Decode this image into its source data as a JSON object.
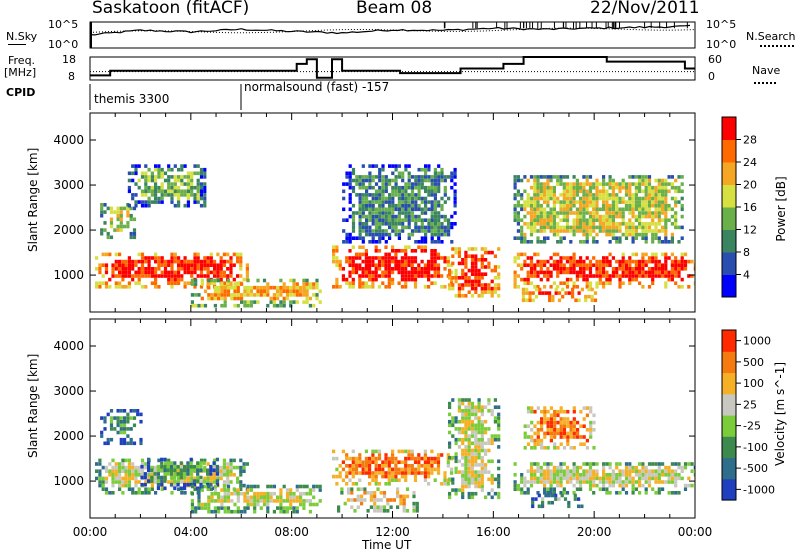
{
  "header": {
    "station": "Saskatoon (fitACF)",
    "beam": "Beam 08",
    "date": "22/Nov/2011"
  },
  "left_labels": {
    "nsky": "N.Sky",
    "freq": "Freq.",
    "freq_unit": "[MHz]",
    "cpid": "CPID"
  },
  "right_labels": {
    "nsearch": "N.Search",
    "nave": "Nave"
  },
  "cpid_names": [
    "themis 3300",
    "normalsound (fast) -157"
  ],
  "chart_data": [
    {
      "type": "line",
      "name": "noise",
      "ytick_labels_left": [
        "10^5",
        "10^0"
      ],
      "ytick_labels_right": [
        "10^5",
        "10^0"
      ],
      "series": [
        {
          "name": "N.Sky",
          "style": "solid",
          "x": [
            0,
            2,
            4,
            6,
            8,
            10,
            12,
            14,
            16,
            18,
            20,
            22,
            24
          ],
          "y_log10": [
            2.5,
            3.4,
            3.1,
            3.6,
            3.2,
            2.9,
            3.5,
            3.4,
            3.8,
            3.6,
            3.8,
            4.0,
            4.2
          ]
        },
        {
          "name": "N.Search",
          "style": "dotted"
        }
      ]
    },
    {
      "type": "line",
      "name": "frequency-nave",
      "ytick_labels_left": [
        "18",
        "8"
      ],
      "ytick_labels_right": [
        "60",
        "0"
      ],
      "series": [
        {
          "name": "Freq.",
          "style": "solid",
          "units": "MHz",
          "steps": [
            [
              0,
              10
            ],
            [
              0.8,
              12
            ],
            [
              8.2,
              15
            ],
            [
              8.6,
              17
            ],
            [
              9.0,
              9
            ],
            [
              9.6,
              17
            ],
            [
              10,
              12
            ],
            [
              12.3,
              11
            ],
            [
              14.7,
              13
            ],
            [
              16.4,
              15
            ],
            [
              17.2,
              18
            ],
            [
              20.5,
              16
            ],
            [
              23.6,
              13
            ],
            [
              24,
              13
            ]
          ]
        },
        {
          "name": "Nave",
          "style": "dotted",
          "value": 22
        }
      ]
    },
    {
      "type": "heatmap",
      "name": "power",
      "ylabel": "Slant Range [km]",
      "ylim": [
        180,
        4600
      ],
      "xlim": [
        0,
        24
      ],
      "yticks": [
        "4000",
        "3000",
        "2000",
        "1000"
      ],
      "colorbar_label": "Power [dB]",
      "colorbar_ticks": [
        "28",
        "24",
        "20",
        "16",
        "12",
        "8",
        "4"
      ],
      "colors": [
        "#0000ff",
        "#2a4eb0",
        "#3a8560",
        "#6ab04a",
        "#d6e040",
        "#f5a623",
        "#ff6a00",
        "#ff0000"
      ],
      "echo_regions": [
        {
          "t0": 0.2,
          "t1": 6.2,
          "r0": 700,
          "r1": 1500,
          "level": 7
        },
        {
          "t0": 0.4,
          "t1": 1.8,
          "r0": 1800,
          "r1": 2600,
          "level": 4
        },
        {
          "t0": 1.5,
          "t1": 4.6,
          "r0": 2500,
          "r1": 3400,
          "level": 3
        },
        {
          "t0": 4.0,
          "t1": 9.2,
          "r0": 280,
          "r1": 900,
          "level": 5
        },
        {
          "t0": 9.6,
          "t1": 14.4,
          "r0": 700,
          "r1": 1600,
          "level": 7
        },
        {
          "t0": 10.0,
          "t1": 14.5,
          "r0": 1700,
          "r1": 3400,
          "level": 2
        },
        {
          "t0": 14.2,
          "t1": 16.2,
          "r0": 500,
          "r1": 1600,
          "level": 7
        },
        {
          "t0": 16.8,
          "t1": 24.0,
          "r0": 700,
          "r1": 1500,
          "level": 7
        },
        {
          "t0": 16.8,
          "t1": 23.5,
          "r0": 1700,
          "r1": 3200,
          "level": 4
        },
        {
          "t0": 17.0,
          "t1": 20.0,
          "r0": 400,
          "r1": 700,
          "level": 7
        }
      ]
    },
    {
      "type": "heatmap",
      "name": "velocity",
      "ylabel": "Slant Range [km]",
      "ylim": [
        180,
        4600
      ],
      "xlim": [
        0,
        24
      ],
      "yticks": [
        "4000",
        "3000",
        "2000",
        "1000"
      ],
      "xtick_labels": [
        "00:00",
        "04:00",
        "08:00",
        "12:00",
        "16:00",
        "20:00",
        "00:00"
      ],
      "xtick_values": [
        0,
        4,
        8,
        12,
        16,
        20,
        24
      ],
      "xlabel": "Time UT",
      "colorbar_label": "Velocity [m s^-1]",
      "colorbar_ticks": [
        "1000",
        "500",
        "100",
        "25",
        "-25",
        "-100",
        "-500",
        "-1000"
      ],
      "colors": [
        "#1f3fbf",
        "#2e6e8a",
        "#3c8a4e",
        "#7acc3a",
        "#c8c8c0",
        "#f5b025",
        "#f57a10",
        "#ff2a00"
      ],
      "echo_regions": [
        {
          "t0": 0.2,
          "t1": 6.2,
          "r0": 700,
          "r1": 1500,
          "level": 4
        },
        {
          "t0": 2.0,
          "t1": 5.0,
          "r0": 800,
          "r1": 1500,
          "level": 2
        },
        {
          "t0": 0.4,
          "t1": 2.0,
          "r0": 1800,
          "r1": 2600,
          "level": 2
        },
        {
          "t0": 4.0,
          "t1": 9.2,
          "r0": 280,
          "r1": 900,
          "level": 4
        },
        {
          "t0": 9.6,
          "t1": 14.4,
          "r0": 900,
          "r1": 1700,
          "level": 6
        },
        {
          "t0": 9.8,
          "t1": 13.0,
          "r0": 300,
          "r1": 800,
          "level": 5
        },
        {
          "t0": 14.2,
          "t1": 16.2,
          "r0": 600,
          "r1": 2800,
          "level": 4
        },
        {
          "t0": 16.8,
          "t1": 24.0,
          "r0": 700,
          "r1": 1400,
          "level": 4
        },
        {
          "t0": 17.2,
          "t1": 20.0,
          "r0": 1700,
          "r1": 2600,
          "level": 6
        },
        {
          "t0": 17.5,
          "t1": 19.5,
          "r0": 400,
          "r1": 650,
          "level": 3
        }
      ]
    }
  ],
  "xaxis_label": "Time UT"
}
